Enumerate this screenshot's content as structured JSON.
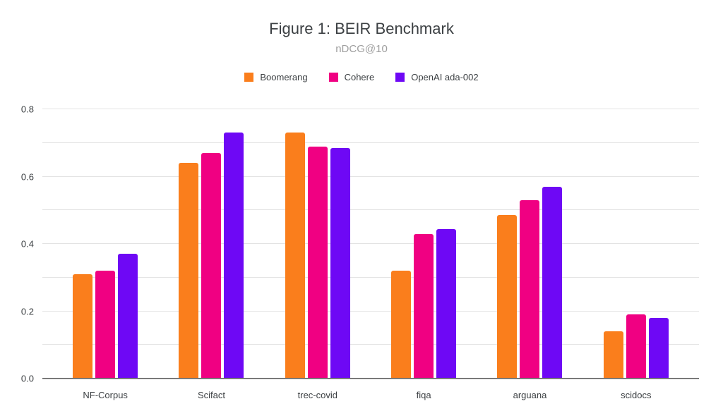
{
  "page": {
    "background": "#ffffff"
  },
  "chart_data": {
    "type": "bar",
    "title": "Figure 1: BEIR Benchmark",
    "subtitle": "nDCG@10",
    "xlabel": "",
    "ylabel": "",
    "categories": [
      "NF-Corpus",
      "Scifact",
      "trec-covid",
      "fiqa",
      "arguana",
      "scidocs"
    ],
    "series": [
      {
        "name": "Boomerang",
        "color": "#FA7E1C",
        "values": [
          0.31,
          0.64,
          0.73,
          0.32,
          0.485,
          0.14
        ]
      },
      {
        "name": "Cohere",
        "color": "#F00082",
        "values": [
          0.32,
          0.67,
          0.69,
          0.43,
          0.53,
          0.19
        ]
      },
      {
        "name": "OpenAI ada-002",
        "color": "#6E08F5",
        "values": [
          0.37,
          0.73,
          0.685,
          0.445,
          0.57,
          0.18
        ]
      }
    ],
    "ylim": [
      0,
      0.8
    ],
    "yticks_labeled": [
      "0.0",
      "0.2",
      "0.4",
      "0.6",
      "0.8"
    ],
    "gridline_step": 0.1,
    "grid": true,
    "legend_position": "top",
    "colors": {
      "gridline": "#e3e3e3",
      "axis_line": "#7a7a7a",
      "title_text": "#3c4043",
      "subtitle_text": "#9e9e9e",
      "tick_text": "#3c4043"
    }
  }
}
